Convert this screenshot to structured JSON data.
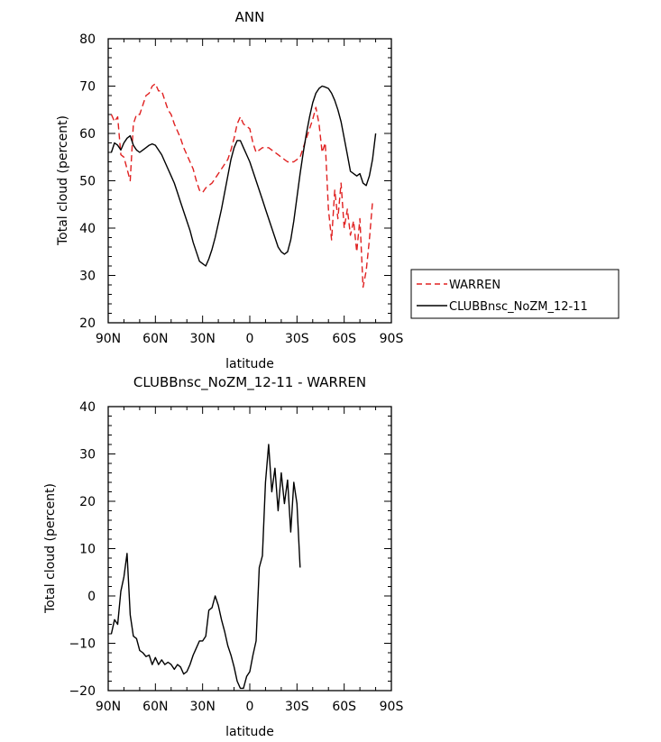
{
  "chart_data": [
    {
      "type": "line",
      "title": "ANN",
      "xlabel": "latitude",
      "ylabel": "Total cloud (percent)",
      "ylim": [
        20,
        80
      ],
      "xlim": [
        90,
        -90
      ],
      "x_ticks": [
        90,
        60,
        30,
        0,
        -30,
        -60,
        -90
      ],
      "x_tick_labels": [
        "90N",
        "60N",
        "30N",
        "0",
        "30S",
        "60S",
        "90S"
      ],
      "y_ticks": [
        20,
        30,
        40,
        50,
        60,
        70,
        80
      ],
      "y_tick_labels": [
        "20",
        "30",
        "40",
        "50",
        "60",
        "70",
        "80"
      ],
      "grid": false,
      "legend": "right",
      "series": [
        {
          "name": "WARREN",
          "color": "#e02020",
          "dash": "dashed",
          "points": [
            [
              88,
              64
            ],
            [
              86,
              62.5
            ],
            [
              84,
              63.5
            ],
            [
              82,
              55.5
            ],
            [
              80,
              55
            ],
            [
              78,
              52.5
            ],
            [
              76,
              50
            ],
            [
              74,
              62
            ],
            [
              72,
              64
            ],
            [
              70,
              64
            ],
            [
              68,
              66
            ],
            [
              66,
              68
            ],
            [
              64,
              68.5
            ],
            [
              62,
              70
            ],
            [
              60,
              70.5
            ],
            [
              58,
              69
            ],
            [
              56,
              69
            ],
            [
              54,
              67
            ],
            [
              52,
              65
            ],
            [
              50,
              64
            ],
            [
              48,
              62
            ],
            [
              46,
              60.5
            ],
            [
              44,
              59
            ],
            [
              42,
              57
            ],
            [
              40,
              55.5
            ],
            [
              38,
              54
            ],
            [
              36,
              52.5
            ],
            [
              34,
              50
            ],
            [
              32,
              48
            ],
            [
              30,
              47.5
            ],
            [
              28,
              48.5
            ],
            [
              26,
              49
            ],
            [
              24,
              49.5
            ],
            [
              22,
              50.5
            ],
            [
              20,
              51.5
            ],
            [
              18,
              52.5
            ],
            [
              16,
              53.5
            ],
            [
              14,
              54.5
            ],
            [
              12,
              56.5
            ],
            [
              10,
              59
            ],
            [
              8,
              62
            ],
            [
              6,
              63.5
            ],
            [
              4,
              62
            ],
            [
              2,
              61.5
            ],
            [
              0,
              61
            ],
            [
              -2,
              58
            ],
            [
              -4,
              56
            ],
            [
              -6,
              56.5
            ],
            [
              -8,
              57
            ],
            [
              -10,
              57
            ],
            [
              -12,
              57
            ],
            [
              -14,
              56.5
            ],
            [
              -16,
              56
            ],
            [
              -18,
              55.5
            ],
            [
              -20,
              55
            ],
            [
              -22,
              54.5
            ],
            [
              -24,
              54
            ],
            [
              -26,
              54
            ],
            [
              -28,
              54
            ],
            [
              -30,
              54.5
            ],
            [
              -32,
              55
            ],
            [
              -34,
              57
            ],
            [
              -36,
              59
            ],
            [
              -38,
              61
            ],
            [
              -40,
              63
            ],
            [
              -42,
              65.5
            ],
            [
              -44,
              62
            ],
            [
              -46,
              56
            ],
            [
              -48,
              58
            ],
            [
              -50,
              44
            ],
            [
              -52,
              37.5
            ],
            [
              -54,
              48
            ],
            [
              -56,
              42
            ],
            [
              -58,
              49.5
            ],
            [
              -60,
              40
            ],
            [
              -62,
              44
            ],
            [
              -64,
              38.5
            ],
            [
              -66,
              41.5
            ],
            [
              -68,
              35
            ],
            [
              -70,
              42
            ],
            [
              -72,
              27.5
            ],
            [
              -74,
              31
            ],
            [
              -76,
              37.5
            ],
            [
              -78,
              45.5
            ]
          ]
        },
        {
          "name": "CLUBBnsc_NoZM_12-11",
          "color": "#000000",
          "dash": "solid",
          "points": [
            [
              88,
              56
            ],
            [
              86,
              58
            ],
            [
              84,
              57.5
            ],
            [
              82,
              56.5
            ],
            [
              80,
              58
            ],
            [
              78,
              59
            ],
            [
              76,
              59.5
            ],
            [
              74,
              57.5
            ],
            [
              72,
              56.5
            ],
            [
              70,
              56
            ],
            [
              68,
              56.5
            ],
            [
              66,
              57
            ],
            [
              64,
              57.5
            ],
            [
              62,
              57.8
            ],
            [
              60,
              57.5
            ],
            [
              58,
              56.5
            ],
            [
              56,
              55.5
            ],
            [
              54,
              54
            ],
            [
              52,
              52.5
            ],
            [
              50,
              51
            ],
            [
              48,
              49.5
            ],
            [
              46,
              47.5
            ],
            [
              44,
              45.5
            ],
            [
              42,
              43.5
            ],
            [
              40,
              41.5
            ],
            [
              38,
              39.5
            ],
            [
              36,
              37
            ],
            [
              34,
              35
            ],
            [
              32,
              33
            ],
            [
              30,
              32.5
            ],
            [
              28,
              32
            ],
            [
              26,
              33.5
            ],
            [
              24,
              35.5
            ],
            [
              22,
              38
            ],
            [
              20,
              41
            ],
            [
              18,
              44
            ],
            [
              16,
              47.5
            ],
            [
              14,
              51
            ],
            [
              12,
              54.5
            ],
            [
              10,
              57
            ],
            [
              8,
              58.5
            ],
            [
              6,
              58.5
            ],
            [
              4,
              57
            ],
            [
              2,
              55.5
            ],
            [
              0,
              54
            ],
            [
              -2,
              52
            ],
            [
              -4,
              50
            ],
            [
              -6,
              48
            ],
            [
              -8,
              46
            ],
            [
              -10,
              44
            ],
            [
              -12,
              42
            ],
            [
              -14,
              40
            ],
            [
              -16,
              38
            ],
            [
              -18,
              36
            ],
            [
              -20,
              35
            ],
            [
              -22,
              34.5
            ],
            [
              -24,
              35
            ],
            [
              -26,
              37.5
            ],
            [
              -28,
              41.5
            ],
            [
              -30,
              46.5
            ],
            [
              -32,
              51.5
            ],
            [
              -34,
              56
            ],
            [
              -36,
              60
            ],
            [
              -38,
              63.5
            ],
            [
              -40,
              66.5
            ],
            [
              -42,
              68.5
            ],
            [
              -44,
              69.5
            ],
            [
              -46,
              70
            ],
            [
              -48,
              69.8
            ],
            [
              -50,
              69.5
            ],
            [
              -52,
              68.5
            ],
            [
              -54,
              67
            ],
            [
              -56,
              65
            ],
            [
              -58,
              62.5
            ],
            [
              -60,
              59
            ],
            [
              -62,
              55.5
            ],
            [
              -64,
              52
            ],
            [
              -66,
              51.5
            ],
            [
              -68,
              51
            ],
            [
              -70,
              51.5
            ],
            [
              -72,
              49.5
            ],
            [
              -74,
              49
            ],
            [
              -76,
              51
            ],
            [
              -78,
              54.5
            ],
            [
              -80,
              60
            ]
          ]
        }
      ]
    },
    {
      "type": "line",
      "title": "CLUBBnsc_NoZM_12-11 - WARREN",
      "xlabel": "latitude",
      "ylabel": "Total cloud (percent)",
      "ylim": [
        -20,
        40
      ],
      "xlim": [
        90,
        -90
      ],
      "x_ticks": [
        90,
        60,
        30,
        0,
        -30,
        -60,
        -90
      ],
      "x_tick_labels": [
        "90N",
        "60N",
        "30N",
        "0",
        "30S",
        "60S",
        "90S"
      ],
      "y_ticks": [
        -20,
        -10,
        0,
        10,
        20,
        30,
        40
      ],
      "y_tick_labels": [
        "−20",
        "−10",
        "0",
        "10",
        "20",
        "30",
        "40"
      ],
      "grid": false,
      "series": [
        {
          "color": "#000000",
          "dash": "solid",
          "points": [
            [
              88,
              -8
            ],
            [
              86,
              -5
            ],
            [
              84,
              -6
            ],
            [
              82,
              1
            ],
            [
              80,
              4
            ],
            [
              78,
              9
            ],
            [
              76,
              -4
            ],
            [
              74,
              -8.5
            ],
            [
              72,
              -9
            ],
            [
              70,
              -11.5
            ],
            [
              68,
              -12
            ],
            [
              66,
              -12.8
            ],
            [
              64,
              -12.5
            ],
            [
              62,
              -14.5
            ],
            [
              60,
              -13
            ],
            [
              58,
              -14.5
            ],
            [
              56,
              -13.5
            ],
            [
              54,
              -14.5
            ],
            [
              52,
              -14
            ],
            [
              50,
              -14.5
            ],
            [
              48,
              -15.5
            ],
            [
              46,
              -14.5
            ],
            [
              44,
              -15
            ],
            [
              42,
              -16.5
            ],
            [
              40,
              -16
            ],
            [
              38,
              -14.5
            ],
            [
              36,
              -12.5
            ],
            [
              34,
              -11
            ],
            [
              32,
              -9.5
            ],
            [
              30,
              -9.5
            ],
            [
              28,
              -8.5
            ],
            [
              26,
              -3
            ],
            [
              24,
              -2.5
            ],
            [
              22,
              0
            ],
            [
              20,
              -2
            ],
            [
              18,
              -5
            ],
            [
              16,
              -7.5
            ],
            [
              14,
              -10.5
            ],
            [
              12,
              -12.5
            ],
            [
              10,
              -15
            ],
            [
              8,
              -18
            ],
            [
              6,
              -19.5
            ],
            [
              4,
              -19.5
            ],
            [
              2,
              -17
            ],
            [
              0,
              -16
            ],
            [
              -2,
              -12.5
            ],
            [
              -4,
              -9.5
            ],
            [
              -6,
              6
            ],
            [
              -8,
              8.5
            ],
            [
              -10,
              24
            ],
            [
              -12,
              32
            ],
            [
              -14,
              22
            ],
            [
              -16,
              27
            ],
            [
              -18,
              18
            ],
            [
              -20,
              26
            ],
            [
              -22,
              19.5
            ],
            [
              -24,
              24.5
            ],
            [
              -26,
              13.5
            ],
            [
              -28,
              24
            ],
            [
              -30,
              19.5
            ],
            [
              -32,
              6
            ]
          ]
        }
      ]
    }
  ]
}
